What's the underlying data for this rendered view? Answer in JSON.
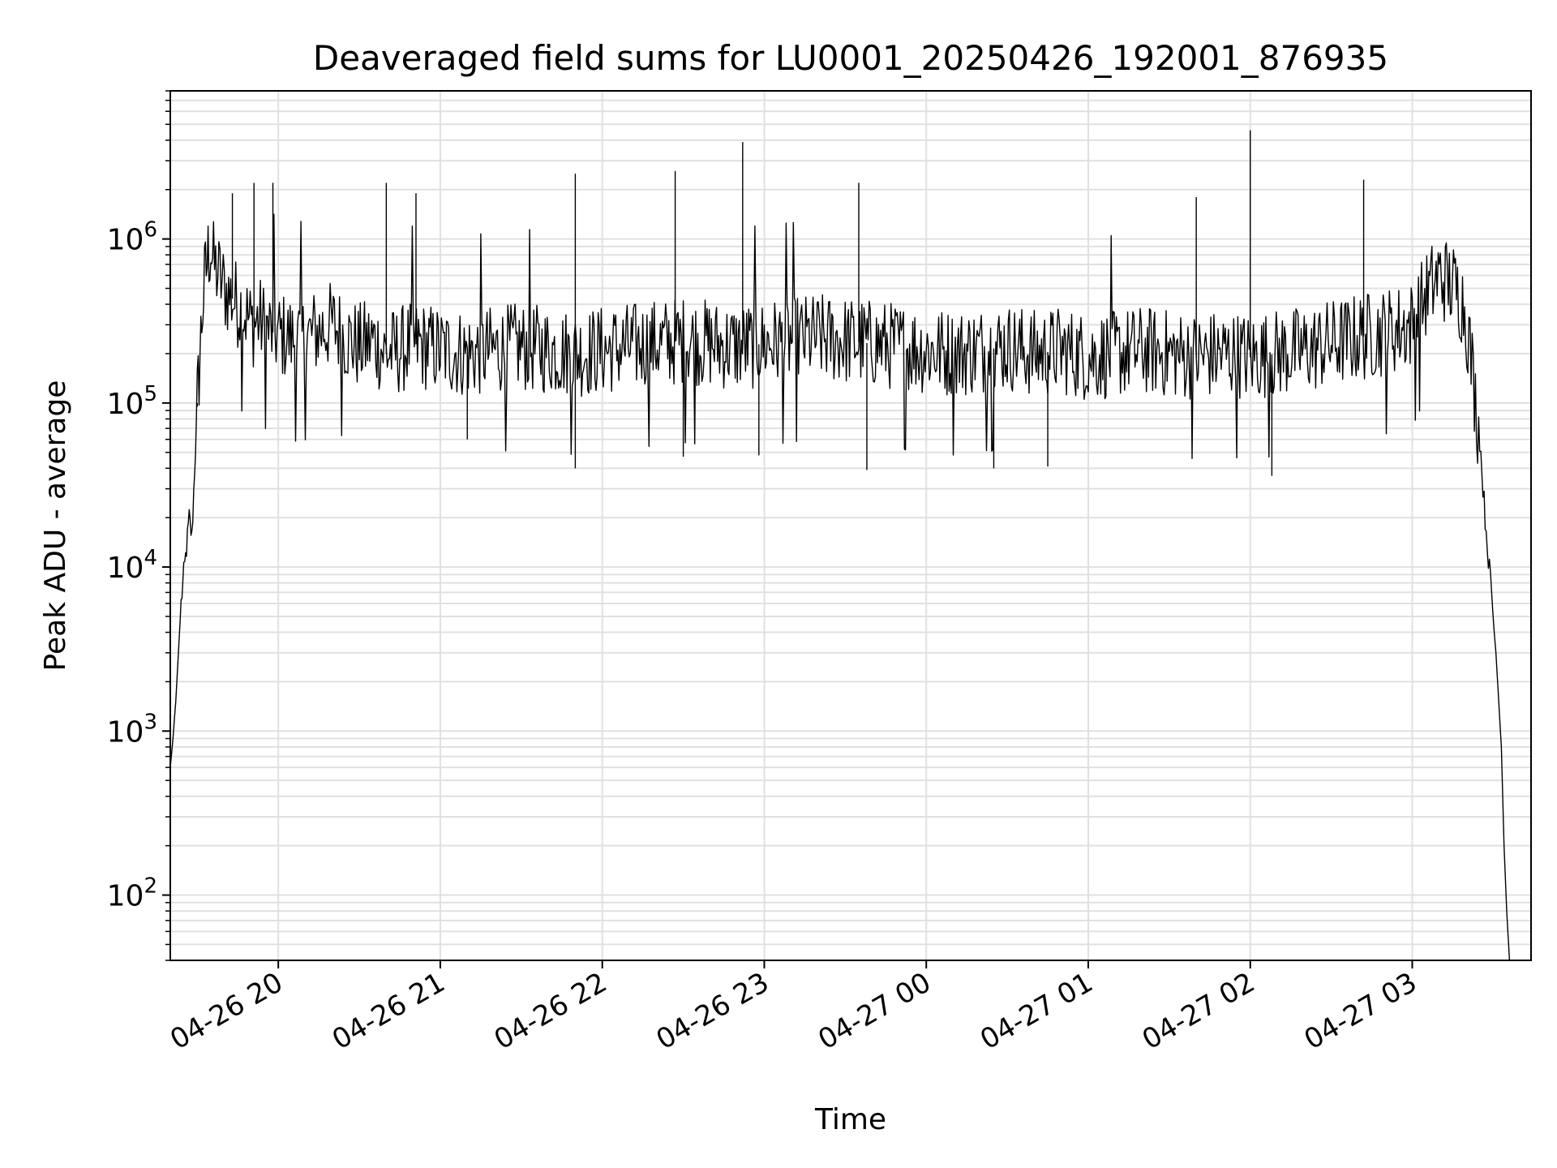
{
  "chart_data": {
    "type": "line",
    "title": "Deaveraged field sums for LU0001_20250426_192001_876935",
    "xlabel": "Time",
    "ylabel": "Peak ADU - average",
    "yscale": "log",
    "ylim": [
      40,
      8000000
    ],
    "xlim": [
      "2025-04-26 19:20",
      "2025-04-27 03:44"
    ],
    "grid": true,
    "line_color": "#000000",
    "grid_color": "#e0e0e0",
    "x_ticks": [
      {
        "value": "2025-04-26 20:00",
        "label": "04-26 20"
      },
      {
        "value": "2025-04-26 21:00",
        "label": "04-26 21"
      },
      {
        "value": "2025-04-26 22:00",
        "label": "04-26 22"
      },
      {
        "value": "2025-04-26 23:00",
        "label": "04-26 23"
      },
      {
        "value": "2025-04-27 00:00",
        "label": "04-27 00"
      },
      {
        "value": "2025-04-27 01:00",
        "label": "04-27 01"
      },
      {
        "value": "2025-04-27 02:00",
        "label": "04-27 02"
      },
      {
        "value": "2025-04-27 03:00",
        "label": "04-27 03"
      }
    ],
    "y_ticks": [
      {
        "value": 100,
        "base": "10",
        "exp": "2"
      },
      {
        "value": 1000,
        "base": "10",
        "exp": "3"
      },
      {
        "value": 10000,
        "base": "10",
        "exp": "4"
      },
      {
        "value": 100000,
        "base": "10",
        "exp": "5"
      },
      {
        "value": 1000000,
        "base": "10",
        "exp": "6"
      }
    ],
    "series": [
      {
        "x": [
          "2025-04-26 19:20",
          "2025-04-26 19:21",
          "2025-04-26 19:22",
          "2025-04-26 19:23",
          "2025-04-26 19:24",
          "2025-04-26 19:25",
          "2025-04-26 19:26",
          "2025-04-26 19:27",
          "2025-04-26 19:28",
          "2025-04-26 19:29",
          "2025-04-26 19:30",
          "2025-04-26 19:31",
          "2025-04-26 19:32",
          "2025-04-26 19:33",
          "2025-04-26 19:34",
          "2025-04-26 19:35",
          "2025-04-26 19:36",
          "2025-04-26 19:38",
          "2025-04-26 19:40",
          "2025-04-26 19:42",
          "2025-04-26 19:45",
          "2025-04-26 19:48",
          "2025-04-26 19:50",
          "2025-04-26 19:53",
          "2025-04-26 19:56",
          "2025-04-26 20:00",
          "2025-04-26 20:04",
          "2025-04-26 20:08",
          "2025-04-26 20:12",
          "2025-04-26 20:16",
          "2025-04-26 20:20",
          "2025-04-26 20:25",
          "2025-04-26 20:30",
          "2025-04-26 20:35",
          "2025-04-26 20:40",
          "2025-04-26 20:45",
          "2025-04-26 20:50",
          "2025-04-26 20:55",
          "2025-04-26 21:00",
          "2025-04-26 21:10",
          "2025-04-26 21:20",
          "2025-04-26 21:30",
          "2025-04-26 21:40",
          "2025-04-26 21:50",
          "2025-04-26 22:00",
          "2025-04-26 22:10",
          "2025-04-26 22:20",
          "2025-04-26 22:30",
          "2025-04-26 22:40",
          "2025-04-26 22:50",
          "2025-04-26 23:00",
          "2025-04-26 23:10",
          "2025-04-26 23:20",
          "2025-04-26 23:30",
          "2025-04-26 23:40",
          "2025-04-26 23:50",
          "2025-04-27 00:00",
          "2025-04-27 00:10",
          "2025-04-27 00:20",
          "2025-04-27 00:30",
          "2025-04-27 00:40",
          "2025-04-27 00:50",
          "2025-04-27 01:00",
          "2025-04-27 01:10",
          "2025-04-27 01:20",
          "2025-04-27 01:30",
          "2025-04-27 01:40",
          "2025-04-27 01:50",
          "2025-04-27 02:00",
          "2025-04-27 02:10",
          "2025-04-27 02:20",
          "2025-04-27 02:30",
          "2025-04-27 02:40",
          "2025-04-27 02:50",
          "2025-04-27 03:00",
          "2025-04-27 03:05",
          "2025-04-27 03:10",
          "2025-04-27 03:13",
          "2025-04-27 03:16",
          "2025-04-27 03:19",
          "2025-04-27 03:21",
          "2025-04-27 03:23",
          "2025-04-27 03:25",
          "2025-04-27 03:27",
          "2025-04-27 03:29",
          "2025-04-27 03:31",
          "2025-04-27 03:33",
          "2025-04-27 03:34",
          "2025-04-27 03:35",
          "2025-04-27 03:36"
        ],
        "y": [
          600,
          900,
          1500,
          3000,
          6000,
          9000,
          13000,
          20000,
          15000,
          40000,
          100000,
          200000,
          400000,
          600000,
          800000,
          900000,
          700000,
          600000,
          500000,
          450000,
          400000,
          350000,
          300000,
          320000,
          280000,
          260000,
          250000,
          240000,
          260000,
          280000,
          300000,
          250000,
          220000,
          240000,
          200000,
          210000,
          230000,
          220000,
          210000,
          200000,
          210000,
          220000,
          210000,
          200000,
          210000,
          220000,
          230000,
          240000,
          230000,
          220000,
          230000,
          240000,
          250000,
          240000,
          230000,
          220000,
          210000,
          200000,
          210000,
          220000,
          200000,
          210000,
          190000,
          200000,
          210000,
          200000,
          190000,
          200000,
          190000,
          200000,
          210000,
          230000,
          250000,
          270000,
          300000,
          450000,
          600000,
          550000,
          500000,
          400000,
          250000,
          120000,
          60000,
          20000,
          8000,
          3000,
          800,
          200,
          80,
          40
        ]
      }
    ],
    "spikes": [
      {
        "x": "2025-04-26 19:43",
        "y": 1900000
      },
      {
        "x": "2025-04-26 19:51",
        "y": 2200000
      },
      {
        "x": "2025-04-26 19:58",
        "y": 2200000
      },
      {
        "x": "2025-04-26 20:40",
        "y": 2200000
      },
      {
        "x": "2025-04-26 20:51",
        "y": 1900000
      },
      {
        "x": "2025-04-26 21:50",
        "y": 2500000
      },
      {
        "x": "2025-04-26 22:27",
        "y": 2600000
      },
      {
        "x": "2025-04-26 22:52",
        "y": 3900000
      },
      {
        "x": "2025-04-26 23:35",
        "y": 2200000
      },
      {
        "x": "2025-04-27 01:40",
        "y": 1800000
      },
      {
        "x": "2025-04-27 02:00",
        "y": 4600000
      },
      {
        "x": "2025-04-27 02:42",
        "y": 2300000
      }
    ],
    "dips": [
      {
        "x": "2025-04-26 19:30",
        "y": 95000
      },
      {
        "x": "2025-04-26 21:10",
        "y": 60000
      },
      {
        "x": "2025-04-26 21:50",
        "y": 40000
      },
      {
        "x": "2025-04-26 22:30",
        "y": 47000
      },
      {
        "x": "2025-04-26 22:58",
        "y": 48000
      },
      {
        "x": "2025-04-26 23:38",
        "y": 39000
      },
      {
        "x": "2025-04-27 00:25",
        "y": 40000
      },
      {
        "x": "2025-04-27 00:45",
        "y": 41000
      },
      {
        "x": "2025-04-27 02:08",
        "y": 36000
      }
    ]
  }
}
